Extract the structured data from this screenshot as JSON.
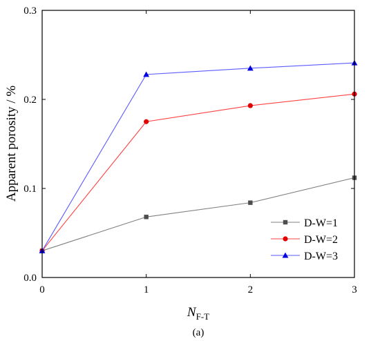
{
  "chart_data": {
    "type": "line",
    "x": [
      0,
      1,
      2,
      3
    ],
    "xticks": [
      "0",
      "1",
      "2",
      "3"
    ],
    "yticks": [
      "0.0",
      "0.1",
      "0.2",
      "0.3"
    ],
    "xlim": [
      0,
      3
    ],
    "ylim": [
      0,
      0.3
    ],
    "xlabel_main": "N",
    "xlabel_sub": "F-T",
    "ylabel": "Apparent porosity / %",
    "caption": "(a)",
    "legend_position": "lower-right",
    "series": [
      {
        "name": "D-W=1",
        "values": [
          0.03,
          0.068,
          0.084,
          0.112
        ],
        "color": "#808080",
        "marker_color": "#4d4d4d",
        "marker": "square"
      },
      {
        "name": "D-W=2",
        "values": [
          0.03,
          0.175,
          0.193,
          0.206
        ],
        "color": "#ff4040",
        "marker_color": "#e00000",
        "marker": "circle"
      },
      {
        "name": "D-W=3",
        "values": [
          0.03,
          0.228,
          0.235,
          0.241
        ],
        "color": "#5a5aff",
        "marker_color": "#0000e0",
        "marker": "triangle"
      }
    ]
  }
}
